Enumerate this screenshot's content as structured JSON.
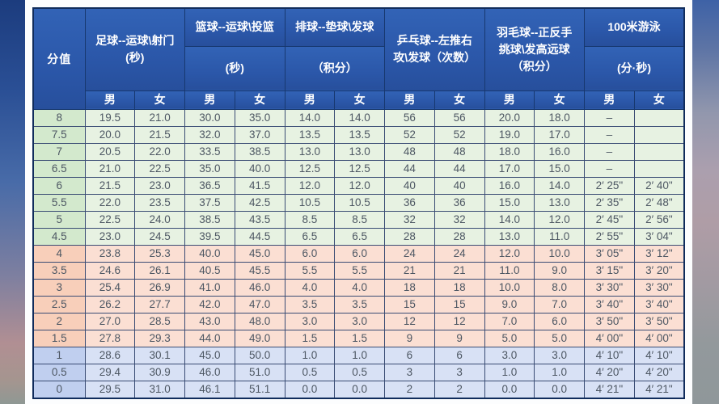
{
  "colors": {
    "header_bg": "#2b57a9",
    "outer_border": "#102c5c",
    "grid_border": "#3a4c74",
    "male_bg": "#cbd7f3",
    "female_bg": "#fbdcc2",
    "green_row_bg": "#e7f2e2",
    "green_score_bg": "#d3e9cd",
    "pink_row_bg": "#fbdfd3",
    "pink_score_bg": "#f8cfba",
    "blue_row_bg": "#d8e1f5",
    "blue_score_bg": "#c0cfef"
  },
  "chart_data": {
    "type": "table",
    "score_column_header": "分值",
    "sub_headers": {
      "male": "男",
      "female": "女"
    },
    "column_groups": [
      {
        "id": "football",
        "lines": [
          "足球--运球\\射门"
        ],
        "unit": "(秒)",
        "split": false
      },
      {
        "id": "basketball",
        "lines": [
          "篮球--运球\\投篮"
        ],
        "unit": "(秒)",
        "split": true
      },
      {
        "id": "volleyball",
        "lines": [
          "排球--垫球\\发球"
        ],
        "unit": "（积分）",
        "split": true
      },
      {
        "id": "table_tennis",
        "lines": [
          "乒乓球--左推右",
          "攻\\发球（次数）"
        ],
        "unit": "",
        "split": false
      },
      {
        "id": "badminton",
        "lines": [
          "羽毛球--正反手",
          "挑球\\发高远球",
          "（积分）"
        ],
        "unit": "",
        "split": false
      },
      {
        "id": "swimming",
        "lines": [
          "100米游泳"
        ],
        "unit": "(分·秒)",
        "split": true
      }
    ],
    "rows": [
      {
        "score": "8",
        "tone": "green",
        "cells": [
          "19.5",
          "21.0",
          "30.0",
          "35.0",
          "14.0",
          "14.0",
          "56",
          "56",
          "20.0",
          "18.0",
          "–",
          ""
        ]
      },
      {
        "score": "7.5",
        "tone": "green",
        "cells": [
          "20.0",
          "21.5",
          "32.0",
          "37.0",
          "13.5",
          "13.5",
          "52",
          "52",
          "19.0",
          "17.0",
          "–",
          ""
        ]
      },
      {
        "score": "7",
        "tone": "green",
        "cells": [
          "20.5",
          "22.0",
          "33.5",
          "38.5",
          "13.0",
          "13.0",
          "48",
          "48",
          "18.0",
          "16.0",
          "–",
          ""
        ]
      },
      {
        "score": "6.5",
        "tone": "green",
        "cells": [
          "21.0",
          "22.5",
          "35.0",
          "40.0",
          "12.5",
          "12.5",
          "44",
          "44",
          "17.0",
          "15.0",
          "–",
          ""
        ]
      },
      {
        "score": "6",
        "tone": "green",
        "cells": [
          "21.5",
          "23.0",
          "36.5",
          "41.5",
          "12.0",
          "12.0",
          "40",
          "40",
          "16.0",
          "14.0",
          "2′ 25\"",
          "2′ 40\""
        ]
      },
      {
        "score": "5.5",
        "tone": "green",
        "cells": [
          "22.0",
          "23.5",
          "37.5",
          "42.5",
          "10.5",
          "10.5",
          "36",
          "36",
          "15.0",
          "13.0",
          "2′ 35\"",
          "2′ 48\""
        ]
      },
      {
        "score": "5",
        "tone": "green",
        "cells": [
          "22.5",
          "24.0",
          "38.5",
          "43.5",
          "8.5",
          "8.5",
          "32",
          "32",
          "14.0",
          "12.0",
          "2′ 45\"",
          "2′ 56\""
        ]
      },
      {
        "score": "4.5",
        "tone": "green",
        "cells": [
          "23.0",
          "24.5",
          "39.5",
          "44.5",
          "6.5",
          "6.5",
          "28",
          "28",
          "13.0",
          "11.0",
          "2′ 55\"",
          "3′ 04\""
        ]
      },
      {
        "score": "4",
        "tone": "pink",
        "cells": [
          "23.8",
          "25.3",
          "40.0",
          "45.0",
          "6.0",
          "6.0",
          "24",
          "24",
          "12.0",
          "10.0",
          "3′ 05\"",
          "3′ 12\""
        ]
      },
      {
        "score": "3.5",
        "tone": "pink",
        "cells": [
          "24.6",
          "26.1",
          "40.5",
          "45.5",
          "5.5",
          "5.5",
          "21",
          "21",
          "11.0",
          "9.0",
          "3′ 15\"",
          "3′ 20\""
        ]
      },
      {
        "score": "3",
        "tone": "pink",
        "cells": [
          "25.4",
          "26.9",
          "41.0",
          "46.0",
          "4.0",
          "4.0",
          "18",
          "18",
          "10.0",
          "8.0",
          "3′ 30\"",
          "3′ 30\""
        ]
      },
      {
        "score": "2.5",
        "tone": "pink",
        "cells": [
          "26.2",
          "27.7",
          "42.0",
          "47.0",
          "3.5",
          "3.5",
          "15",
          "15",
          "9.0",
          "7.0",
          "3′ 40\"",
          "3′ 40\""
        ]
      },
      {
        "score": "2",
        "tone": "pink",
        "cells": [
          "27.0",
          "28.5",
          "43.0",
          "48.0",
          "3.0",
          "3.0",
          "12",
          "12",
          "7.0",
          "6.0",
          "3′ 50\"",
          "3′ 50\""
        ]
      },
      {
        "score": "1.5",
        "tone": "pink",
        "cells": [
          "27.8",
          "29.3",
          "44.0",
          "49.0",
          "1.5",
          "1.5",
          "9",
          "9",
          "5.0",
          "5.0",
          "4′ 00\"",
          "4′ 00\""
        ]
      },
      {
        "score": "1",
        "tone": "blue",
        "cells": [
          "28.6",
          "30.1",
          "45.0",
          "50.0",
          "1.0",
          "1.0",
          "6",
          "6",
          "3.0",
          "3.0",
          "4′ 10\"",
          "4′ 10\""
        ]
      },
      {
        "score": "0.5",
        "tone": "blue",
        "cells": [
          "29.4",
          "30.9",
          "46.0",
          "51.0",
          "0.5",
          "0.5",
          "3",
          "3",
          "1.0",
          "1.0",
          "4′ 20\"",
          "4′ 20\""
        ]
      },
      {
        "score": "0",
        "tone": "blue",
        "cells": [
          "29.5",
          "31.0",
          "46.1",
          "51.1",
          "0.0",
          "0.0",
          "2",
          "2",
          "0.0",
          "0.0",
          "4′ 21\"",
          "4′ 21\""
        ]
      }
    ]
  }
}
